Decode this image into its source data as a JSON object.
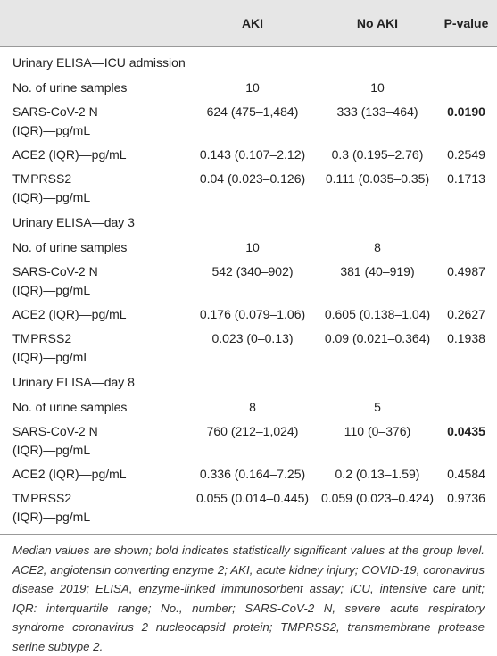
{
  "table": {
    "columns": [
      "AKI",
      "No AKI",
      "P-value"
    ],
    "sections": [
      {
        "title": "Urinary ELISA—ICU admission",
        "rows": [
          {
            "label": [
              "No. of urine samples"
            ],
            "aki": "10",
            "no_aki": "10",
            "p": "",
            "p_bold": false
          },
          {
            "label": [
              "SARS-CoV-2 N",
              "(IQR)—pg/mL"
            ],
            "aki": "624 (475–1,484)",
            "no_aki": "333 (133–464)",
            "p": "0.0190",
            "p_bold": true
          },
          {
            "label": [
              "ACE2 (IQR)—pg/mL"
            ],
            "aki": "0.143 (0.107–2.12)",
            "no_aki": "0.3 (0.195–2.76)",
            "p": "0.2549",
            "p_bold": false
          },
          {
            "label": [
              "TMPRSS2",
              "(IQR)—pg/mL"
            ],
            "aki": "0.04 (0.023–0.126)",
            "no_aki": "0.111 (0.035–0.35)",
            "p": "0.1713",
            "p_bold": false
          }
        ]
      },
      {
        "title": "Urinary ELISA—day 3",
        "rows": [
          {
            "label": [
              "No. of urine samples"
            ],
            "aki": "10",
            "no_aki": "8",
            "p": "",
            "p_bold": false
          },
          {
            "label": [
              "SARS-CoV-2 N",
              "(IQR)—pg/mL"
            ],
            "aki": "542 (340–902)",
            "no_aki": "381 (40–919)",
            "p": "0.4987",
            "p_bold": false
          },
          {
            "label": [
              "ACE2 (IQR)—pg/mL"
            ],
            "aki": "0.176 (0.079–1.06)",
            "no_aki": "0.605 (0.138–1.04)",
            "p": "0.2627",
            "p_bold": false
          },
          {
            "label": [
              "TMPRSS2",
              "(IQR)—pg/mL"
            ],
            "aki": "0.023 (0–0.13)",
            "no_aki": "0.09 (0.021–0.364)",
            "p": "0.1938",
            "p_bold": false
          }
        ]
      },
      {
        "title": "Urinary ELISA—day 8",
        "rows": [
          {
            "label": [
              "No. of urine samples"
            ],
            "aki": "8",
            "no_aki": "5",
            "p": "",
            "p_bold": false
          },
          {
            "label": [
              "SARS-CoV-2 N",
              "(IQR)—pg/mL"
            ],
            "aki": "760 (212–1,024)",
            "no_aki": "110 (0–376)",
            "p": "0.0435",
            "p_bold": true
          },
          {
            "label": [
              "ACE2 (IQR)—pg/mL"
            ],
            "aki": "0.336 (0.164–7.25)",
            "no_aki": "0.2 (0.13–1.59)",
            "p": "0.4584",
            "p_bold": false
          },
          {
            "label": [
              "TMPRSS2",
              "(IQR)—pg/mL"
            ],
            "aki": "0.055 (0.014–0.445)",
            "no_aki": "0.059 (0.023–0.424)",
            "p": "0.9736",
            "p_bold": false
          }
        ]
      }
    ],
    "footnote": "Median values are shown; bold indicates statistically significant values at the group level. ACE2, angiotensin converting enzyme 2; AKI, acute kidney injury; COVID-19, coronavirus disease 2019; ELISA, enzyme-linked immunosorbent assay; ICU, intensive care unit; IQR: interquartile range; No., number; SARS-CoV-2 N, severe acute respiratory syndrome coronavirus 2 nucleocapsid protein; TMPRSS2, transmembrane protease serine subtype 2."
  }
}
